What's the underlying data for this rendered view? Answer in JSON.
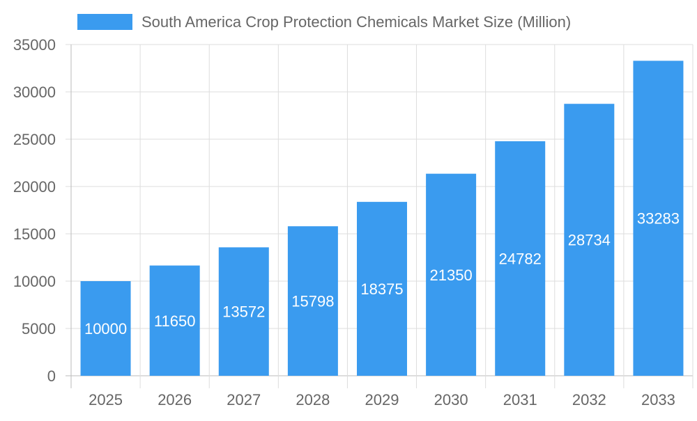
{
  "chart_data": {
    "type": "bar",
    "title": "",
    "xlabel": "",
    "ylabel": "",
    "categories": [
      "2025",
      "2026",
      "2027",
      "2028",
      "2029",
      "2030",
      "2031",
      "2032",
      "2033"
    ],
    "series": [
      {
        "name": "South America Crop Protection Chemicals Market Size (Million)",
        "values": [
          10000,
          11650,
          13572,
          15798,
          18375,
          21350,
          24782,
          28734,
          33283
        ],
        "color": "#3a9bef"
      }
    ],
    "ylim": [
      0,
      35000
    ],
    "yticks": [
      0,
      5000,
      10000,
      15000,
      20000,
      25000,
      30000,
      35000
    ],
    "grid": true,
    "legend": "top",
    "data_labels": "inside-center",
    "label_color": "#ffffff",
    "text_color": "#666666",
    "grid_color": "#dddddd"
  }
}
